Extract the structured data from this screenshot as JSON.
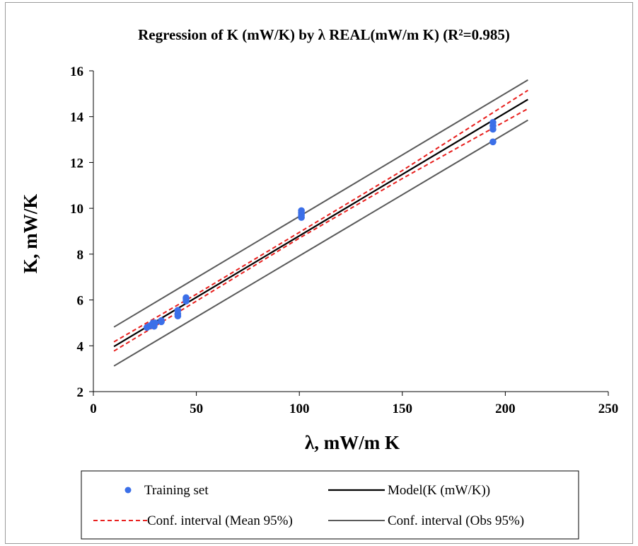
{
  "chart_data": {
    "type": "scatter",
    "title": "Regression of K (mW/K) by λ REAL(mW/m  K) (R²=0.985)",
    "xlabel": "λ, mW/m  K",
    "ylabel": "K, mW/K",
    "xlim": [
      0,
      250
    ],
    "ylim": [
      2,
      16
    ],
    "x_ticks": [
      "0",
      "50",
      "100",
      "150",
      "200",
      "250"
    ],
    "y_ticks": [
      "2",
      "4",
      "6",
      "8",
      "10",
      "12",
      "14",
      "16"
    ],
    "grid": false,
    "legend_position": "bottom",
    "series": [
      {
        "name": "Training set",
        "kind": "points",
        "color": "#3b6fe8",
        "points": [
          [
            26,
            4.8
          ],
          [
            27,
            4.85
          ],
          [
            28,
            4.9
          ],
          [
            29,
            5.0
          ],
          [
            29.5,
            4.85
          ],
          [
            30,
            5.0
          ],
          [
            33,
            5.05
          ],
          [
            33,
            5.1
          ],
          [
            41,
            5.3
          ],
          [
            41,
            5.4
          ],
          [
            41,
            5.55
          ],
          [
            45,
            5.95
          ],
          [
            45,
            6.05
          ],
          [
            45,
            6.1
          ],
          [
            101,
            9.6
          ],
          [
            101,
            9.7
          ],
          [
            101,
            9.8
          ],
          [
            101,
            9.9
          ],
          [
            194,
            12.9
          ],
          [
            194,
            13.45
          ],
          [
            194,
            13.6
          ],
          [
            194,
            13.75
          ]
        ]
      },
      {
        "name": "Model(K (mW/K))",
        "kind": "line",
        "color": "#000000",
        "points": [
          [
            10,
            3.97
          ],
          [
            211,
            14.75
          ]
        ]
      },
      {
        "name": "Conf. interval (Mean 95%)",
        "kind": "dashed-pair",
        "color": "#e8201e",
        "upper": [
          [
            10,
            4.17
          ],
          [
            50,
            6.25
          ],
          [
            100,
            8.95
          ],
          [
            150,
            11.65
          ],
          [
            211,
            15.15
          ]
        ],
        "lower": [
          [
            10,
            3.77
          ],
          [
            50,
            5.95
          ],
          [
            100,
            8.7
          ],
          [
            150,
            11.3
          ],
          [
            211,
            14.35
          ]
        ]
      },
      {
        "name": "Conf. interval (Obs 95%)",
        "kind": "line-pair",
        "color": "#5a5a5a",
        "upper": [
          [
            10,
            4.82
          ],
          [
            211,
            15.6
          ]
        ],
        "lower": [
          [
            10,
            3.12
          ],
          [
            211,
            13.85
          ]
        ]
      }
    ]
  },
  "legend": {
    "training": "Training set",
    "model": "Model(K (mW/K))",
    "conf_mean": "Conf. interval (Mean 95%)",
    "conf_obs": "Conf. interval (Obs 95%)"
  }
}
